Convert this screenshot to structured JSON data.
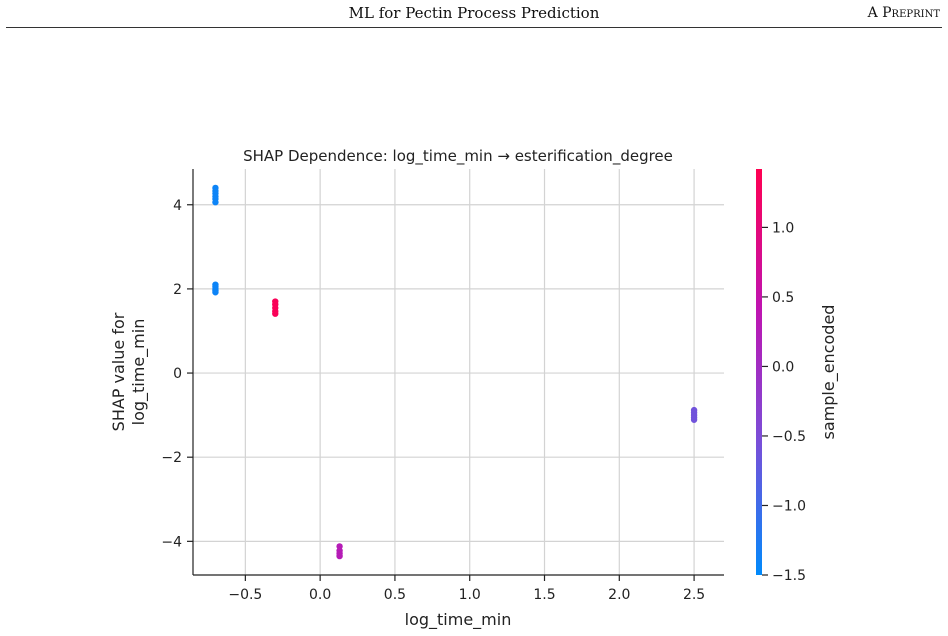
{
  "header": {
    "running_title": "ML for Pectin Process Prediction",
    "tag": "A Preprint"
  },
  "chart_data": {
    "type": "scatter",
    "title": "SHAP Dependence: log_time_min → esterification_degree",
    "xlabel": "log_time_min",
    "ylabel_lines": [
      "SHAP value for",
      "log_time_min"
    ],
    "xlim": [
      -0.85,
      2.7
    ],
    "ylim": [
      -4.8,
      4.85
    ],
    "xticks": [
      {
        "value": -0.5,
        "label": "−0.5"
      },
      {
        "value": 0.0,
        "label": "0.0"
      },
      {
        "value": 0.5,
        "label": "0.5"
      },
      {
        "value": 1.0,
        "label": "1.0"
      },
      {
        "value": 1.5,
        "label": "1.5"
      },
      {
        "value": 2.0,
        "label": "2.0"
      },
      {
        "value": 2.5,
        "label": "2.5"
      }
    ],
    "yticks": [
      {
        "value": -4,
        "label": "−4"
      },
      {
        "value": -2,
        "label": "−2"
      },
      {
        "value": 0,
        "label": "0"
      },
      {
        "value": 2,
        "label": "2"
      },
      {
        "value": 4,
        "label": "4"
      }
    ],
    "grid": true,
    "colorbar": {
      "label": "sample_encoded",
      "range": [
        -1.5,
        1.42
      ],
      "colormap": [
        "#008afb",
        "#7a4ed8",
        "#c013b0",
        "#ff0051"
      ],
      "ticks": [
        {
          "value": 1.0,
          "label": "1.0"
        },
        {
          "value": 0.5,
          "label": "0.5"
        },
        {
          "value": 0.0,
          "label": "0.0"
        },
        {
          "value": -0.5,
          "label": "−0.5"
        },
        {
          "value": -1.0,
          "label": "−1.0"
        },
        {
          "value": -1.5,
          "label": "−1.5"
        }
      ]
    },
    "points": [
      {
        "x": -0.7,
        "y": 4.4,
        "c": -1.4
      },
      {
        "x": -0.7,
        "y": 4.33,
        "c": -1.4
      },
      {
        "x": -0.7,
        "y": 4.27,
        "c": -1.4
      },
      {
        "x": -0.7,
        "y": 4.2,
        "c": -1.4
      },
      {
        "x": -0.7,
        "y": 4.14,
        "c": -1.4
      },
      {
        "x": -0.7,
        "y": 4.06,
        "c": -1.4
      },
      {
        "x": -0.7,
        "y": 2.1,
        "c": -1.4
      },
      {
        "x": -0.7,
        "y": 2.05,
        "c": -1.4
      },
      {
        "x": -0.7,
        "y": 2.0,
        "c": -1.4
      },
      {
        "x": -0.7,
        "y": 1.96,
        "c": -1.4
      },
      {
        "x": -0.7,
        "y": 1.92,
        "c": -1.4
      },
      {
        "x": -0.3,
        "y": 1.7,
        "c": 1.35
      },
      {
        "x": -0.3,
        "y": 1.63,
        "c": 1.35
      },
      {
        "x": -0.3,
        "y": 1.55,
        "c": 1.35
      },
      {
        "x": -0.3,
        "y": 1.47,
        "c": 1.35
      },
      {
        "x": -0.3,
        "y": 1.41,
        "c": 1.35
      },
      {
        "x": 0.13,
        "y": -4.12,
        "c": 0.3
      },
      {
        "x": 0.13,
        "y": -4.22,
        "c": 0.3
      },
      {
        "x": 0.13,
        "y": -4.29,
        "c": 0.3
      },
      {
        "x": 0.13,
        "y": -4.35,
        "c": 0.3
      },
      {
        "x": 2.5,
        "y": -0.88,
        "c": -0.6
      },
      {
        "x": 2.5,
        "y": -0.94,
        "c": -0.6
      },
      {
        "x": 2.5,
        "y": -1.0,
        "c": -0.6
      },
      {
        "x": 2.5,
        "y": -1.06,
        "c": -0.6
      },
      {
        "x": 2.5,
        "y": -1.11,
        "c": -0.6
      }
    ]
  }
}
